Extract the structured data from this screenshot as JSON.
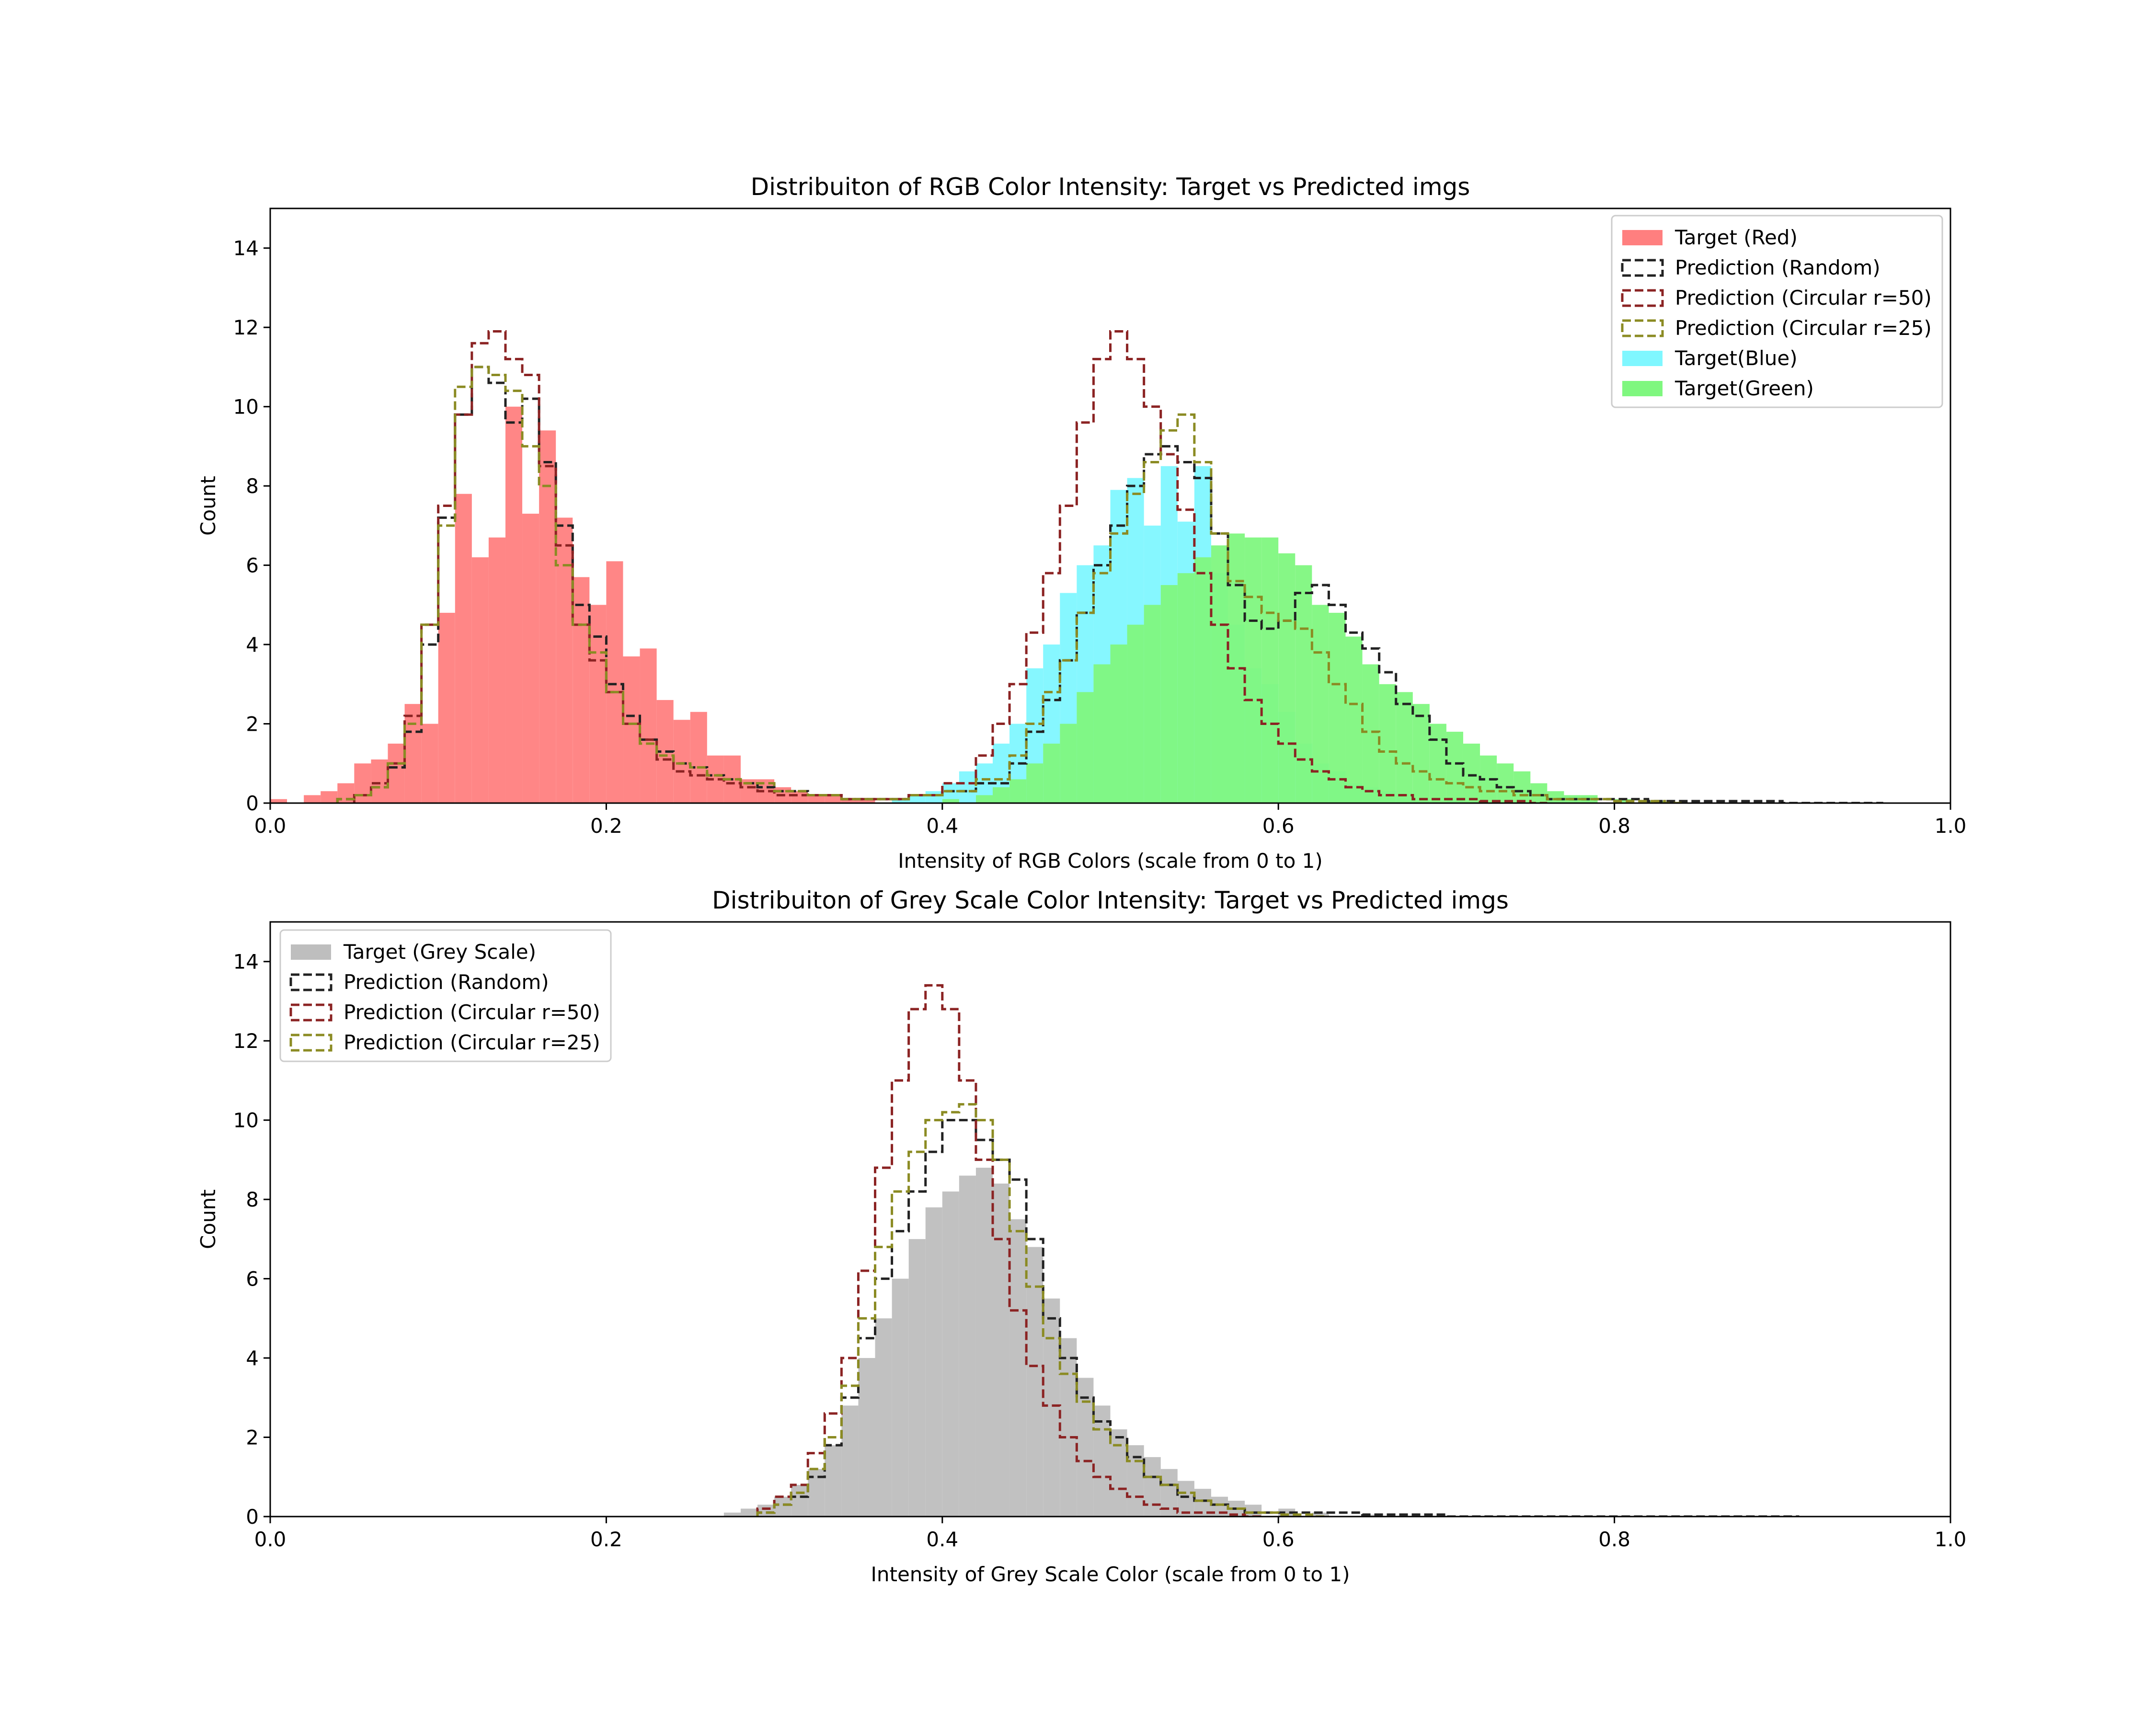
{
  "chart_data": [
    {
      "type": "histogram",
      "title": "Distribuiton of RGB Color Intensity: Target vs Predicted imgs",
      "xlabel": "Intensity of RGB Colors (scale from 0 to 1)",
      "ylabel": "Count",
      "xlim": [
        0,
        1
      ],
      "ylim": [
        0,
        15
      ],
      "xticks": [
        "0.0",
        "0.2",
        "0.4",
        "0.6",
        "0.8",
        "1.0"
      ],
      "yticks": [
        "0",
        "2",
        "4",
        "6",
        "8",
        "10",
        "12",
        "14"
      ],
      "legend_position": "top-right",
      "bin_width": 0.01,
      "series": [
        {
          "name": "Target (Red)",
          "style": "filled",
          "color": "#ff7f7f",
          "x": [
            0.0,
            0.02,
            0.03,
            0.04,
            0.05,
            0.06,
            0.07,
            0.08,
            0.09,
            0.1,
            0.11,
            0.12,
            0.13,
            0.14,
            0.15,
            0.16,
            0.17,
            0.18,
            0.19,
            0.2,
            0.21,
            0.22,
            0.23,
            0.24,
            0.25,
            0.26,
            0.27,
            0.28,
            0.29,
            0.3,
            0.31,
            0.32,
            0.33,
            0.34,
            0.35
          ],
          "y": [
            0.1,
            0.2,
            0.3,
            0.5,
            1.0,
            1.1,
            1.5,
            2.5,
            2.0,
            4.8,
            7.8,
            6.2,
            6.7,
            10.0,
            7.3,
            9.4,
            7.2,
            5.7,
            5.0,
            6.1,
            3.7,
            3.9,
            2.6,
            2.1,
            2.3,
            1.2,
            1.2,
            0.6,
            0.6,
            0.4,
            0.3,
            0.2,
            0.2,
            0.1,
            0.1
          ]
        },
        {
          "name": "Prediction (Random)",
          "style": "dashed-step",
          "color": "#222222",
          "x": [
            0.04,
            0.05,
            0.06,
            0.07,
            0.08,
            0.09,
            0.1,
            0.11,
            0.12,
            0.13,
            0.14,
            0.15,
            0.16,
            0.17,
            0.18,
            0.19,
            0.2,
            0.21,
            0.22,
            0.23,
            0.24,
            0.25,
            0.26,
            0.27,
            0.28,
            0.29,
            0.3,
            0.32,
            0.34,
            0.36,
            0.38,
            0.4,
            0.42,
            0.44,
            0.45,
            0.46,
            0.47,
            0.48,
            0.49,
            0.5,
            0.51,
            0.52,
            0.53,
            0.54,
            0.55,
            0.56,
            0.57,
            0.58,
            0.59,
            0.6,
            0.61,
            0.62,
            0.63,
            0.64,
            0.65,
            0.66,
            0.67,
            0.68,
            0.69,
            0.7,
            0.71,
            0.72,
            0.73,
            0.74,
            0.75,
            0.76,
            0.78,
            0.8,
            0.82,
            0.85,
            0.9,
            0.95
          ],
          "y": [
            0.1,
            0.2,
            0.4,
            0.9,
            1.8,
            4.0,
            7.2,
            9.8,
            11.0,
            10.6,
            9.6,
            10.2,
            8.6,
            7.0,
            5.0,
            4.2,
            3.0,
            2.2,
            1.6,
            1.3,
            1.0,
            0.9,
            0.7,
            0.6,
            0.5,
            0.4,
            0.3,
            0.2,
            0.1,
            0.1,
            0.2,
            0.3,
            0.5,
            1.0,
            1.8,
            2.6,
            3.6,
            4.8,
            6.0,
            7.0,
            8.0,
            8.8,
            9.0,
            8.6,
            8.2,
            6.8,
            5.5,
            4.6,
            4.4,
            4.6,
            5.3,
            5.5,
            5.0,
            4.3,
            3.9,
            3.3,
            2.5,
            2.2,
            1.6,
            1.0,
            0.7,
            0.6,
            0.4,
            0.3,
            0.2,
            0.1,
            0.1,
            0.1,
            0.05,
            0.05,
            0.0,
            0.0
          ]
        },
        {
          "name": "Prediction (Circular r=50)",
          "style": "dashed-step",
          "color": "#8b2323",
          "x": [
            0.05,
            0.06,
            0.07,
            0.08,
            0.09,
            0.1,
            0.11,
            0.12,
            0.13,
            0.14,
            0.15,
            0.16,
            0.17,
            0.18,
            0.19,
            0.2,
            0.21,
            0.22,
            0.23,
            0.24,
            0.25,
            0.26,
            0.27,
            0.28,
            0.29,
            0.3,
            0.32,
            0.34,
            0.36,
            0.38,
            0.4,
            0.42,
            0.43,
            0.44,
            0.45,
            0.46,
            0.47,
            0.48,
            0.49,
            0.5,
            0.51,
            0.52,
            0.53,
            0.54,
            0.55,
            0.56,
            0.57,
            0.58,
            0.59,
            0.6,
            0.61,
            0.62,
            0.63,
            0.64,
            0.65,
            0.66,
            0.67,
            0.68,
            0.7,
            0.72,
            0.75
          ],
          "y": [
            0.2,
            0.5,
            1.0,
            2.2,
            4.5,
            7.5,
            9.8,
            11.6,
            11.9,
            11.2,
            10.8,
            8.5,
            6.5,
            4.5,
            3.6,
            2.8,
            2.0,
            1.6,
            1.1,
            0.8,
            0.7,
            0.6,
            0.5,
            0.4,
            0.3,
            0.2,
            0.2,
            0.1,
            0.1,
            0.2,
            0.5,
            1.2,
            2.0,
            3.0,
            4.3,
            5.8,
            7.5,
            9.6,
            11.2,
            11.9,
            11.2,
            10.0,
            8.8,
            7.4,
            5.8,
            4.5,
            3.4,
            2.6,
            2.0,
            1.5,
            1.1,
            0.8,
            0.6,
            0.4,
            0.3,
            0.2,
            0.2,
            0.1,
            0.1,
            0.05,
            0.0
          ]
        },
        {
          "name": "Prediction (Circular r=25)",
          "style": "dashed-step",
          "color": "#8b8b23",
          "x": [
            0.04,
            0.05,
            0.06,
            0.07,
            0.08,
            0.09,
            0.1,
            0.11,
            0.12,
            0.13,
            0.14,
            0.15,
            0.16,
            0.17,
            0.18,
            0.19,
            0.2,
            0.21,
            0.22,
            0.23,
            0.24,
            0.25,
            0.26,
            0.27,
            0.28,
            0.3,
            0.32,
            0.34,
            0.36,
            0.38,
            0.4,
            0.42,
            0.44,
            0.45,
            0.46,
            0.47,
            0.48,
            0.49,
            0.5,
            0.51,
            0.52,
            0.53,
            0.54,
            0.55,
            0.56,
            0.57,
            0.58,
            0.59,
            0.6,
            0.61,
            0.62,
            0.63,
            0.64,
            0.65,
            0.66,
            0.67,
            0.68,
            0.69,
            0.7,
            0.71,
            0.72,
            0.74,
            0.76,
            0.78,
            0.8,
            0.83
          ],
          "y": [
            0.1,
            0.2,
            0.4,
            1.0,
            2.0,
            4.5,
            7.0,
            10.5,
            11.0,
            10.8,
            10.4,
            9.0,
            8.0,
            6.0,
            4.5,
            3.8,
            2.8,
            2.0,
            1.5,
            1.2,
            1.0,
            0.9,
            0.7,
            0.6,
            0.5,
            0.3,
            0.2,
            0.1,
            0.1,
            0.2,
            0.3,
            0.6,
            1.2,
            2.0,
            2.8,
            3.6,
            4.8,
            5.8,
            6.8,
            7.8,
            8.6,
            9.4,
            9.8,
            8.6,
            6.8,
            5.6,
            5.2,
            4.8,
            4.6,
            4.4,
            3.8,
            3.0,
            2.5,
            1.8,
            1.3,
            1.0,
            0.8,
            0.6,
            0.5,
            0.4,
            0.3,
            0.2,
            0.1,
            0.1,
            0.05,
            0.0
          ]
        },
        {
          "name": "Target(Blue)",
          "style": "filled",
          "color": "#7ff7ff",
          "x": [
            0.37,
            0.38,
            0.39,
            0.4,
            0.41,
            0.42,
            0.43,
            0.44,
            0.45,
            0.46,
            0.47,
            0.48,
            0.49,
            0.5,
            0.51,
            0.52,
            0.53,
            0.54,
            0.55,
            0.56,
            0.57,
            0.58,
            0.59,
            0.6,
            0.61,
            0.62,
            0.63,
            0.64,
            0.65,
            0.66,
            0.67,
            0.68,
            0.7
          ],
          "y": [
            0.1,
            0.2,
            0.3,
            0.5,
            0.8,
            1.0,
            1.5,
            2.0,
            3.4,
            4.0,
            5.3,
            6.0,
            6.5,
            7.9,
            8.2,
            7.0,
            8.5,
            7.1,
            8.5,
            5.8,
            4.5,
            3.4,
            3.0,
            2.3,
            1.5,
            1.0,
            0.8,
            0.5,
            0.4,
            0.3,
            0.2,
            0.1,
            0.1
          ]
        },
        {
          "name": "Target(Green)",
          "style": "filled",
          "color": "#7ff77f",
          "x": [
            0.4,
            0.42,
            0.43,
            0.44,
            0.45,
            0.46,
            0.47,
            0.48,
            0.49,
            0.5,
            0.51,
            0.52,
            0.53,
            0.54,
            0.55,
            0.56,
            0.57,
            0.58,
            0.59,
            0.6,
            0.61,
            0.62,
            0.63,
            0.64,
            0.65,
            0.66,
            0.67,
            0.68,
            0.69,
            0.7,
            0.71,
            0.72,
            0.73,
            0.74,
            0.75,
            0.76,
            0.77,
            0.78,
            0.8,
            0.82
          ],
          "y": [
            0.1,
            0.2,
            0.4,
            0.6,
            1.0,
            1.5,
            2.0,
            2.8,
            3.5,
            4.0,
            4.5,
            5.0,
            5.5,
            5.8,
            6.2,
            6.5,
            6.8,
            6.7,
            6.7,
            6.3,
            6.0,
            5.0,
            4.8,
            4.2,
            3.5,
            3.0,
            2.8,
            2.5,
            2.0,
            1.8,
            1.5,
            1.2,
            1.0,
            0.8,
            0.5,
            0.3,
            0.2,
            0.2,
            0.1,
            0.05
          ]
        }
      ]
    },
    {
      "type": "histogram",
      "title": "Distribuiton of Grey Scale Color Intensity: Target vs Predicted imgs",
      "xlabel": "Intensity of Grey Scale Color (scale from 0 to 1)",
      "ylabel": "Count",
      "xlim": [
        0,
        1
      ],
      "ylim": [
        0,
        15
      ],
      "xticks": [
        "0.0",
        "0.2",
        "0.4",
        "0.6",
        "0.8",
        "1.0"
      ],
      "yticks": [
        "0",
        "2",
        "4",
        "6",
        "8",
        "10",
        "12",
        "14"
      ],
      "legend_position": "top-left",
      "bin_width": 0.01,
      "series": [
        {
          "name": "Target (Grey Scale)",
          "style": "filled",
          "color": "#bebebe",
          "x": [
            0.27,
            0.28,
            0.29,
            0.3,
            0.31,
            0.32,
            0.33,
            0.34,
            0.35,
            0.36,
            0.37,
            0.38,
            0.39,
            0.4,
            0.41,
            0.42,
            0.43,
            0.44,
            0.45,
            0.46,
            0.47,
            0.48,
            0.49,
            0.5,
            0.51,
            0.52,
            0.53,
            0.54,
            0.55,
            0.56,
            0.57,
            0.58,
            0.6,
            0.62,
            0.65,
            0.7
          ],
          "y": [
            0.1,
            0.2,
            0.3,
            0.5,
            0.8,
            1.2,
            1.8,
            2.8,
            4.0,
            5.0,
            6.0,
            7.0,
            7.8,
            8.2,
            8.6,
            8.8,
            8.4,
            7.5,
            6.8,
            5.5,
            4.5,
            3.5,
            2.8,
            2.2,
            1.8,
            1.5,
            1.2,
            0.9,
            0.7,
            0.5,
            0.4,
            0.3,
            0.2,
            0.1,
            0.05,
            0.0
          ]
        },
        {
          "name": "Prediction (Random)",
          "style": "dashed-step",
          "color": "#222222",
          "x": [
            0.29,
            0.3,
            0.31,
            0.32,
            0.33,
            0.34,
            0.35,
            0.36,
            0.37,
            0.38,
            0.39,
            0.4,
            0.41,
            0.42,
            0.43,
            0.44,
            0.45,
            0.46,
            0.47,
            0.48,
            0.49,
            0.5,
            0.51,
            0.52,
            0.53,
            0.54,
            0.55,
            0.56,
            0.57,
            0.58,
            0.6,
            0.65,
            0.7,
            0.8,
            0.9
          ],
          "y": [
            0.1,
            0.3,
            0.5,
            1.0,
            1.8,
            3.0,
            4.5,
            6.0,
            7.2,
            8.2,
            9.2,
            10.0,
            10.0,
            9.5,
            9.0,
            8.5,
            7.0,
            5.0,
            4.0,
            3.0,
            2.4,
            2.0,
            1.5,
            1.0,
            0.8,
            0.5,
            0.4,
            0.3,
            0.2,
            0.1,
            0.1,
            0.05,
            0.0,
            0.0,
            0.0
          ]
        },
        {
          "name": "Prediction (Circular r=50)",
          "style": "dashed-step",
          "color": "#8b2323",
          "x": [
            0.29,
            0.3,
            0.31,
            0.32,
            0.33,
            0.34,
            0.35,
            0.36,
            0.37,
            0.38,
            0.39,
            0.4,
            0.41,
            0.42,
            0.43,
            0.44,
            0.45,
            0.46,
            0.47,
            0.48,
            0.49,
            0.5,
            0.51,
            0.52,
            0.53,
            0.54,
            0.55,
            0.56,
            0.57,
            0.58
          ],
          "y": [
            0.2,
            0.5,
            0.8,
            1.6,
            2.6,
            4.0,
            6.2,
            8.8,
            11.0,
            12.8,
            13.4,
            12.8,
            11.0,
            9.0,
            7.0,
            5.2,
            3.8,
            2.8,
            2.0,
            1.4,
            1.0,
            0.7,
            0.5,
            0.3,
            0.2,
            0.1,
            0.1,
            0.1,
            0.05,
            0.0
          ]
        },
        {
          "name": "Prediction (Circular r=25)",
          "style": "dashed-step",
          "color": "#8b8b23",
          "x": [
            0.29,
            0.3,
            0.31,
            0.32,
            0.33,
            0.34,
            0.35,
            0.36,
            0.37,
            0.38,
            0.39,
            0.4,
            0.41,
            0.42,
            0.43,
            0.44,
            0.45,
            0.46,
            0.47,
            0.48,
            0.49,
            0.5,
            0.51,
            0.52,
            0.53,
            0.54,
            0.55,
            0.56,
            0.57,
            0.58,
            0.6,
            0.62
          ],
          "y": [
            0.1,
            0.3,
            0.6,
            1.2,
            2.0,
            3.3,
            5.0,
            6.8,
            8.2,
            9.2,
            10.0,
            10.2,
            10.4,
            10.0,
            9.0,
            7.2,
            5.8,
            4.5,
            3.6,
            2.9,
            2.2,
            1.8,
            1.4,
            1.0,
            0.8,
            0.6,
            0.4,
            0.3,
            0.2,
            0.1,
            0.05,
            0.0
          ]
        }
      ]
    }
  ]
}
